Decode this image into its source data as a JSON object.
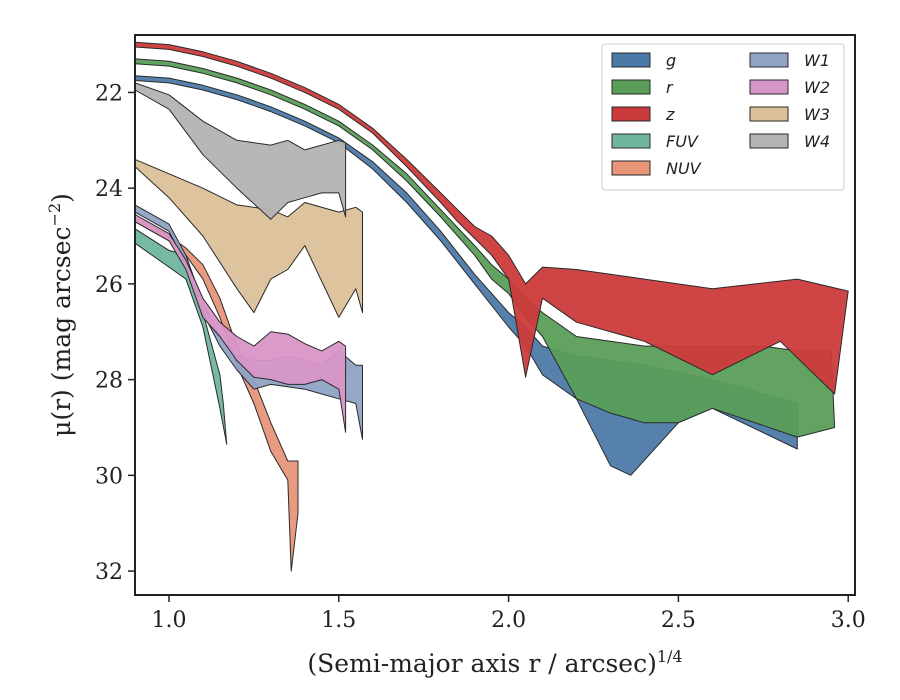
{
  "chart_data": {
    "type": "area",
    "title": "",
    "xlabel": "(Semi-major axis r / arcsec)",
    "xlabel_sup": "1/4",
    "ylabel": "μ(r) (mag arcsec",
    "ylabel_sup": "−2",
    "ylabel_close": ")",
    "xlim": [
      0.9,
      3.02
    ],
    "ylim": [
      32.5,
      20.8
    ],
    "y_inverted": true,
    "grid": false,
    "legend_position": "top-right",
    "legend_columns": 2,
    "xticks": [
      "1.0",
      "1.5",
      "2.0",
      "2.5",
      "3.0"
    ],
    "xtick_values": [
      1.0,
      1.5,
      2.0,
      2.5,
      3.0
    ],
    "yticks": [
      "22",
      "24",
      "26",
      "28",
      "30",
      "32"
    ],
    "ytick_values": [
      22,
      24,
      26,
      28,
      30,
      32
    ],
    "series": [
      {
        "name": "g",
        "color": "#4c7aa8",
        "upper": [
          [
            0.9,
            21.65
          ],
          [
            1.0,
            21.7
          ],
          [
            1.1,
            21.85
          ],
          [
            1.2,
            22.05
          ],
          [
            1.3,
            22.3
          ],
          [
            1.4,
            22.6
          ],
          [
            1.5,
            22.95
          ],
          [
            1.6,
            23.45
          ],
          [
            1.7,
            24.1
          ],
          [
            1.8,
            24.9
          ],
          [
            1.9,
            25.8
          ],
          [
            2.0,
            26.6
          ],
          [
            2.05,
            26.9
          ],
          [
            2.1,
            27.3
          ],
          [
            2.2,
            27.5
          ],
          [
            2.3,
            27.6
          ],
          [
            2.4,
            27.7
          ],
          [
            2.6,
            28.0
          ],
          [
            2.85,
            28.5
          ]
        ],
        "lower": [
          [
            0.9,
            21.75
          ],
          [
            1.0,
            21.8
          ],
          [
            1.1,
            21.95
          ],
          [
            1.2,
            22.15
          ],
          [
            1.3,
            22.4
          ],
          [
            1.4,
            22.7
          ],
          [
            1.5,
            23.05
          ],
          [
            1.6,
            23.6
          ],
          [
            1.7,
            24.3
          ],
          [
            1.8,
            25.1
          ],
          [
            1.9,
            26.0
          ],
          [
            2.0,
            26.9
          ],
          [
            2.05,
            27.3
          ],
          [
            2.1,
            27.9
          ],
          [
            2.2,
            28.4
          ],
          [
            2.3,
            29.8
          ],
          [
            2.36,
            30.0
          ],
          [
            2.5,
            28.9
          ],
          [
            2.6,
            28.6
          ],
          [
            2.85,
            29.45
          ]
        ]
      },
      {
        "name": "r",
        "color": "#5a9e5a",
        "upper": [
          [
            0.9,
            21.3
          ],
          [
            1.0,
            21.35
          ],
          [
            1.1,
            21.5
          ],
          [
            1.2,
            21.7
          ],
          [
            1.3,
            21.95
          ],
          [
            1.4,
            22.25
          ],
          [
            1.5,
            22.6
          ],
          [
            1.6,
            23.1
          ],
          [
            1.7,
            23.7
          ],
          [
            1.8,
            24.45
          ],
          [
            1.9,
            25.2
          ],
          [
            1.95,
            25.6
          ],
          [
            2.0,
            25.9
          ],
          [
            2.05,
            26.3
          ],
          [
            2.1,
            26.6
          ],
          [
            2.2,
            27.1
          ],
          [
            2.4,
            27.3
          ],
          [
            2.6,
            27.3
          ],
          [
            2.75,
            27.3
          ],
          [
            2.85,
            27.4
          ],
          [
            2.95,
            27.4
          ]
        ],
        "lower": [
          [
            0.9,
            21.4
          ],
          [
            1.0,
            21.45
          ],
          [
            1.1,
            21.6
          ],
          [
            1.2,
            21.8
          ],
          [
            1.3,
            22.05
          ],
          [
            1.4,
            22.35
          ],
          [
            1.5,
            22.7
          ],
          [
            1.6,
            23.2
          ],
          [
            1.7,
            23.85
          ],
          [
            1.8,
            24.6
          ],
          [
            1.9,
            25.4
          ],
          [
            1.95,
            25.9
          ],
          [
            2.0,
            26.2
          ],
          [
            2.05,
            26.7
          ],
          [
            2.1,
            27.1
          ],
          [
            2.2,
            28.4
          ],
          [
            2.3,
            28.7
          ],
          [
            2.4,
            28.9
          ],
          [
            2.5,
            28.9
          ],
          [
            2.6,
            28.6
          ],
          [
            2.85,
            29.2
          ],
          [
            2.96,
            29.0
          ]
        ]
      },
      {
        "name": "z",
        "color": "#cc3b3b",
        "upper": [
          [
            0.9,
            20.95
          ],
          [
            1.0,
            21.0
          ],
          [
            1.1,
            21.15
          ],
          [
            1.2,
            21.35
          ],
          [
            1.3,
            21.6
          ],
          [
            1.4,
            21.9
          ],
          [
            1.5,
            22.25
          ],
          [
            1.6,
            22.75
          ],
          [
            1.7,
            23.4
          ],
          [
            1.8,
            24.1
          ],
          [
            1.85,
            24.45
          ],
          [
            1.9,
            24.8
          ],
          [
            1.95,
            25.0
          ],
          [
            2.0,
            25.4
          ],
          [
            2.05,
            26.0
          ],
          [
            2.1,
            25.65
          ],
          [
            2.2,
            25.7
          ],
          [
            2.4,
            25.9
          ],
          [
            2.6,
            26.1
          ],
          [
            2.85,
            25.9
          ],
          [
            3.0,
            26.15
          ]
        ],
        "lower": [
          [
            0.9,
            21.05
          ],
          [
            1.0,
            21.1
          ],
          [
            1.1,
            21.25
          ],
          [
            1.2,
            21.45
          ],
          [
            1.3,
            21.7
          ],
          [
            1.4,
            22.0
          ],
          [
            1.5,
            22.35
          ],
          [
            1.6,
            22.85
          ],
          [
            1.7,
            23.55
          ],
          [
            1.8,
            24.3
          ],
          [
            1.85,
            24.7
          ],
          [
            1.9,
            25.05
          ],
          [
            1.95,
            25.4
          ],
          [
            2.0,
            25.9
          ],
          [
            2.05,
            27.95
          ],
          [
            2.1,
            26.3
          ],
          [
            2.2,
            26.8
          ],
          [
            2.4,
            27.2
          ],
          [
            2.6,
            27.9
          ],
          [
            2.8,
            27.2
          ],
          [
            2.96,
            28.3
          ]
        ]
      },
      {
        "name": "FUV",
        "color": "#6fb5a0",
        "upper": [
          [
            0.9,
            24.85
          ],
          [
            1.0,
            25.3
          ],
          [
            1.05,
            25.4
          ],
          [
            1.1,
            26.6
          ],
          [
            1.15,
            27.9
          ],
          [
            1.16,
            28.5
          ]
        ],
        "lower": [
          [
            0.9,
            25.15
          ],
          [
            1.0,
            25.65
          ],
          [
            1.05,
            25.9
          ],
          [
            1.1,
            26.9
          ],
          [
            1.15,
            28.6
          ],
          [
            1.17,
            29.35
          ]
        ]
      },
      {
        "name": "NUV",
        "color": "#e8967a",
        "upper": [
          [
            0.9,
            24.55
          ],
          [
            1.0,
            25.0
          ],
          [
            1.05,
            25.25
          ],
          [
            1.1,
            25.6
          ],
          [
            1.15,
            26.3
          ],
          [
            1.2,
            27.3
          ],
          [
            1.25,
            28.0
          ],
          [
            1.3,
            28.9
          ],
          [
            1.35,
            29.7
          ],
          [
            1.38,
            29.7
          ]
        ],
        "lower": [
          [
            0.9,
            24.7
          ],
          [
            1.0,
            25.1
          ],
          [
            1.05,
            25.4
          ],
          [
            1.1,
            25.9
          ],
          [
            1.15,
            26.7
          ],
          [
            1.2,
            27.7
          ],
          [
            1.25,
            28.5
          ],
          [
            1.3,
            29.5
          ],
          [
            1.35,
            30.1
          ],
          [
            1.36,
            32.0
          ],
          [
            1.38,
            30.8
          ]
        ]
      },
      {
        "name": "W1",
        "color": "#8fa3c5",
        "upper": [
          [
            0.9,
            24.35
          ],
          [
            1.0,
            24.75
          ],
          [
            1.05,
            25.4
          ],
          [
            1.1,
            26.4
          ],
          [
            1.15,
            27.1
          ],
          [
            1.2,
            27.5
          ],
          [
            1.25,
            27.6
          ],
          [
            1.3,
            27.6
          ],
          [
            1.35,
            27.5
          ],
          [
            1.4,
            27.6
          ],
          [
            1.45,
            27.7
          ],
          [
            1.5,
            27.4
          ],
          [
            1.55,
            27.7
          ],
          [
            1.57,
            27.7
          ]
        ],
        "lower": [
          [
            0.9,
            24.5
          ],
          [
            1.0,
            24.9
          ],
          [
            1.05,
            25.6
          ],
          [
            1.1,
            26.6
          ],
          [
            1.15,
            27.3
          ],
          [
            1.2,
            27.8
          ],
          [
            1.25,
            28.2
          ],
          [
            1.3,
            28.1
          ],
          [
            1.35,
            28.15
          ],
          [
            1.4,
            28.2
          ],
          [
            1.45,
            28.3
          ],
          [
            1.5,
            28.4
          ],
          [
            1.55,
            28.5
          ],
          [
            1.57,
            29.25
          ]
        ]
      },
      {
        "name": "W2",
        "color": "#d896c8",
        "upper": [
          [
            0.9,
            24.55
          ],
          [
            1.0,
            24.95
          ],
          [
            1.05,
            25.5
          ],
          [
            1.1,
            26.3
          ],
          [
            1.15,
            26.8
          ],
          [
            1.2,
            27.1
          ],
          [
            1.25,
            27.3
          ],
          [
            1.3,
            27.0
          ],
          [
            1.35,
            27.05
          ],
          [
            1.4,
            27.25
          ],
          [
            1.45,
            27.4
          ],
          [
            1.5,
            27.2
          ],
          [
            1.52,
            27.3
          ]
        ],
        "lower": [
          [
            0.9,
            24.7
          ],
          [
            1.0,
            25.1
          ],
          [
            1.05,
            25.7
          ],
          [
            1.1,
            26.7
          ],
          [
            1.15,
            27.1
          ],
          [
            1.2,
            27.6
          ],
          [
            1.25,
            27.95
          ],
          [
            1.3,
            28.0
          ],
          [
            1.35,
            28.1
          ],
          [
            1.4,
            28.1
          ],
          [
            1.45,
            28.0
          ],
          [
            1.5,
            28.2
          ],
          [
            1.52,
            29.1
          ]
        ]
      },
      {
        "name": "W3",
        "color": "#dcc09a",
        "upper": [
          [
            0.9,
            23.4
          ],
          [
            1.0,
            23.7
          ],
          [
            1.1,
            24.0
          ],
          [
            1.2,
            24.35
          ],
          [
            1.3,
            24.45
          ],
          [
            1.35,
            24.6
          ],
          [
            1.4,
            24.3
          ],
          [
            1.5,
            24.5
          ],
          [
            1.55,
            24.4
          ],
          [
            1.57,
            24.5
          ]
        ],
        "lower": [
          [
            0.9,
            23.55
          ],
          [
            1.0,
            24.2
          ],
          [
            1.1,
            25.0
          ],
          [
            1.2,
            26.1
          ],
          [
            1.25,
            26.6
          ],
          [
            1.3,
            25.9
          ],
          [
            1.35,
            25.7
          ],
          [
            1.4,
            25.2
          ],
          [
            1.5,
            26.7
          ],
          [
            1.55,
            26.1
          ],
          [
            1.57,
            26.6
          ]
        ]
      },
      {
        "name": "W4",
        "color": "#b3b3b3",
        "upper": [
          [
            0.9,
            21.8
          ],
          [
            1.0,
            22.05
          ],
          [
            1.1,
            22.6
          ],
          [
            1.2,
            23.0
          ],
          [
            1.3,
            23.1
          ],
          [
            1.35,
            23.0
          ],
          [
            1.4,
            23.2
          ],
          [
            1.45,
            23.1
          ],
          [
            1.5,
            23.0
          ],
          [
            1.52,
            23.05
          ]
        ],
        "lower": [
          [
            0.9,
            21.95
          ],
          [
            1.0,
            22.35
          ],
          [
            1.1,
            23.3
          ],
          [
            1.2,
            24.0
          ],
          [
            1.3,
            24.65
          ],
          [
            1.35,
            24.3
          ],
          [
            1.4,
            24.2
          ],
          [
            1.45,
            24.1
          ],
          [
            1.5,
            24.1
          ],
          [
            1.52,
            24.6
          ]
        ]
      }
    ]
  }
}
